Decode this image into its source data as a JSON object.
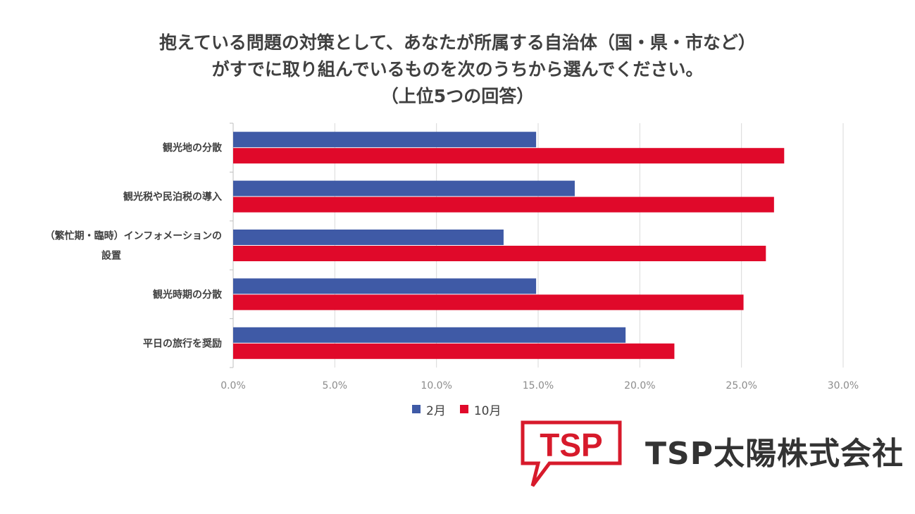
{
  "title_lines": [
    "抱えている問題の対策として、あなたが所属する自治体（国・県・市など）",
    "がすでに取り組んでいるものを次のうちから選んでください。",
    "（上位5つの回答）"
  ],
  "colors": {
    "feb": "#3f5aa6",
    "oct": "#e0092a",
    "grid": "#d9d9d9",
    "logo": "#d71a2b"
  },
  "chart_data": {
    "type": "bar",
    "orientation": "horizontal",
    "title": "抱えている問題の対策として、あなたが所属する自治体（国・県・市など）がすでに取り組んでいるものを次のうちから選んでください。（上位5つの回答）",
    "categories": [
      [
        "観光地の分散"
      ],
      [
        "観光税や民泊税の導入"
      ],
      [
        "（繁忙期・臨時）インフォメーションの",
        "設置"
      ],
      [
        "観光時期の分散"
      ],
      [
        "平日の旅行を奨励"
      ]
    ],
    "series": [
      {
        "name": "2月",
        "values": [
          14.9,
          16.8,
          13.3,
          14.9,
          19.3
        ]
      },
      {
        "name": "10月",
        "values": [
          27.1,
          26.6,
          26.2,
          25.1,
          21.7
        ]
      }
    ],
    "x_ticks": [
      "0.0%",
      "5.0%",
      "10.0%",
      "15.0%",
      "20.0%",
      "25.0%",
      "30.0%"
    ],
    "xlim": [
      0,
      30
    ],
    "legend_position": "bottom",
    "grid": true
  },
  "logo": {
    "mark_text": "TSP",
    "company_name": "TSP太陽株式会社"
  }
}
